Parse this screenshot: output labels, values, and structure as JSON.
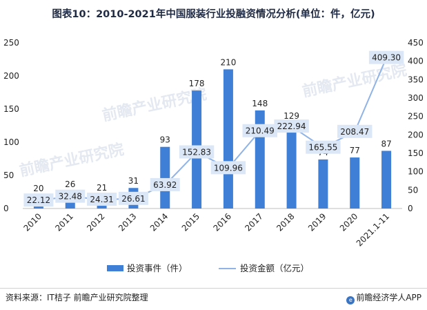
{
  "title": "图表10：2010-2021年中国服装行业投融资情况分析(单位：件，亿元)",
  "source": "资料来源：IT桔子 前瞻产业研究院整理",
  "brand": "前瞻经济学人APP",
  "watermark": "前瞻产业研究院",
  "colors": {
    "bar": "#3f7fd6",
    "line": "#8fb3e6",
    "label_bg": "#dbe7f7"
  },
  "chart_data": {
    "type": "bar",
    "categories": [
      "2010",
      "2011",
      "2012",
      "2013",
      "2014",
      "2015",
      "2016",
      "2017",
      "2018",
      "2019",
      "2020",
      "2021.1-11"
    ],
    "series": [
      {
        "name": "投资事件（件）",
        "type": "bar",
        "axis": "left",
        "values": [
          20,
          26,
          21,
          31,
          93,
          178,
          210,
          148,
          129,
          74,
          77,
          87
        ]
      },
      {
        "name": "投资金额（亿元）",
        "type": "line",
        "axis": "right",
        "values": [
          22.12,
          32.48,
          24.31,
          26.61,
          63.92,
          152.83,
          109.96,
          210.49,
          222.94,
          165.55,
          208.47,
          409.3
        ]
      }
    ],
    "left_axis": {
      "ylim": [
        0,
        250
      ],
      "ticks": [
        "0",
        "50",
        "100",
        "150",
        "200",
        "250"
      ]
    },
    "right_axis": {
      "ylim": [
        0,
        450
      ],
      "ticks": [
        "0",
        "50",
        "100",
        "150",
        "200",
        "250",
        "300",
        "350",
        "400",
        "450"
      ]
    },
    "line_labels": [
      "22.12",
      "32.48",
      "24.31",
      "26.61",
      "63.92",
      "152.83",
      "109.96",
      "210.49",
      "222.94",
      "165.55",
      "208.47",
      "409.30"
    ],
    "legend_position": "bottom"
  }
}
